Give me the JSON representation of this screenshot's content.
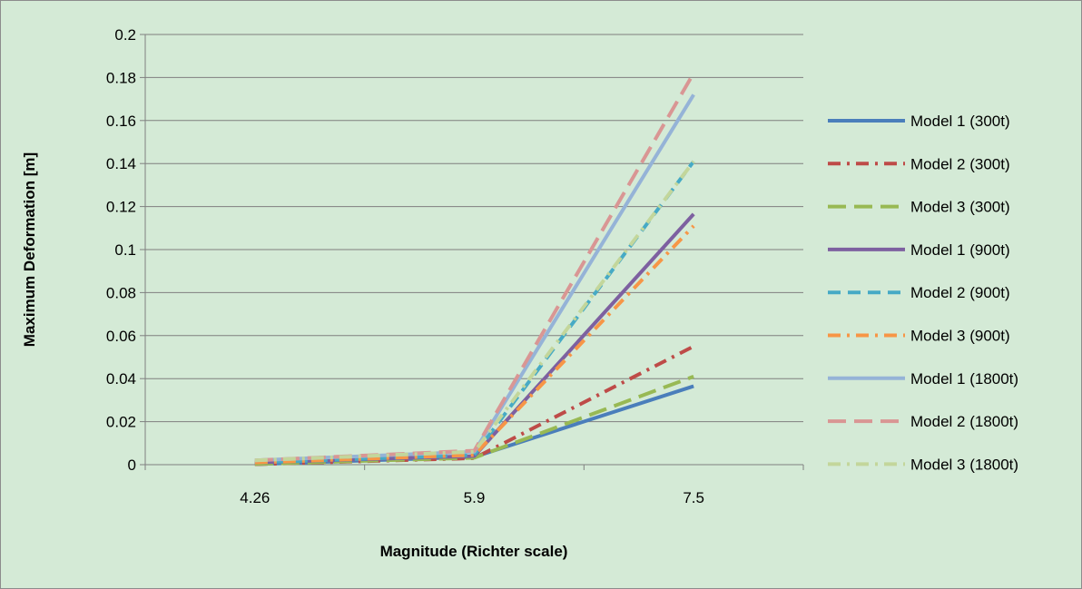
{
  "colors": {
    "background": "#d4ead6",
    "border": "#8c8c8c",
    "grid": "#7f7f7f",
    "axis": "#808080"
  },
  "chart_data": {
    "type": "line",
    "title": "",
    "xlabel": "Magnitude (Richter scale)",
    "ylabel": "Maximum Deformation [m]",
    "categories": [
      "4.26",
      "5.9",
      "7.5"
    ],
    "ylim": [
      0,
      0.2
    ],
    "yticks": [
      "0",
      "0.02",
      "0.04",
      "0.06",
      "0.08",
      "0.1",
      "0.12",
      "0.14",
      "0.16",
      "0.18",
      "0.2"
    ],
    "grid": true,
    "legend_position": "right",
    "series": [
      {
        "name": "Model 1 (300t)",
        "values": [
          0.0002,
          0.0036,
          0.0365
        ],
        "color": "#4a7ebb",
        "dash": "solid"
      },
      {
        "name": "Model 2 (300t)",
        "values": [
          0.0002,
          0.003,
          0.055
        ],
        "color": "#be4b48",
        "dash": "dashdot"
      },
      {
        "name": "Model 3 (300t)",
        "values": [
          0.0003,
          0.0032,
          0.041
        ],
        "color": "#98b954",
        "dash": "longdash"
      },
      {
        "name": "Model 1 (900t)",
        "values": [
          0.001,
          0.004,
          0.1165
        ],
        "color": "#7d60a0",
        "dash": "solid"
      },
      {
        "name": "Model 2 (900t)",
        "values": [
          0.001,
          0.0045,
          0.141
        ],
        "color": "#46aac5",
        "dash": "dash"
      },
      {
        "name": "Model 3 (900t)",
        "values": [
          0.001,
          0.0045,
          0.111
        ],
        "color": "#f79646",
        "dash": "dashdot"
      },
      {
        "name": "Model 1 (1800t)",
        "values": [
          0.002,
          0.006,
          0.172
        ],
        "color": "#95b3d7",
        "dash": "solid"
      },
      {
        "name": "Model 2 (1800t)",
        "values": [
          0.002,
          0.0065,
          0.182
        ],
        "color": "#d99694",
        "dash": "longdash"
      },
      {
        "name": "Model 3 (1800t)",
        "values": [
          0.002,
          0.006,
          0.141
        ],
        "color": "#c3d69b",
        "dash": "dashdot"
      }
    ]
  }
}
